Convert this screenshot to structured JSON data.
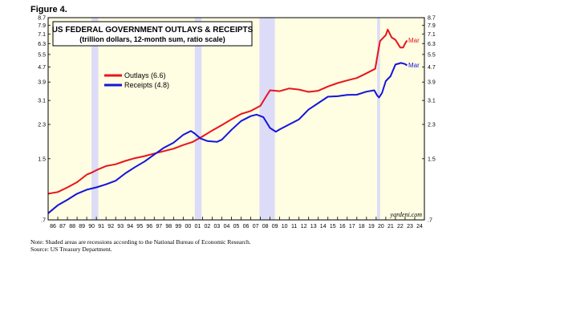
{
  "figure_label": "Figure 4.",
  "note": "Note: Shaded areas are recessions according to the National Bureau of Economic Research.",
  "source": "Source: US Treasury Department.",
  "colors": {
    "plot_bg": "#fffde2",
    "recession": "#dcdcf8",
    "outlays": "#e8141c",
    "receipts": "#1414dc"
  },
  "chart_data": {
    "type": "line",
    "title": "US FEDERAL GOVERNMENT OUTLAYS & RECEIPTS",
    "subtitle": "(trillion dollars, 12-month sum, ratio scale)",
    "y_scale": "log",
    "ylim": [
      0.7,
      8.7
    ],
    "y_ticks": [
      0.7,
      1.5,
      2.3,
      3.1,
      3.9,
      4.7,
      5.5,
      6.3,
      7.1,
      7.9,
      8.7
    ],
    "y_tick_labels": [
      ".7",
      "1.5",
      "2.3",
      "3.1",
      "3.9",
      "4.7",
      "5.5",
      "6.3",
      "7.1",
      "7.9",
      "8.7"
    ],
    "xlim": [
      1986,
      2025
    ],
    "x_tick_labels": [
      "86",
      "87",
      "88",
      "89",
      "90",
      "91",
      "92",
      "93",
      "94",
      "95",
      "96",
      "97",
      "98",
      "99",
      "00",
      "01",
      "02",
      "03",
      "04",
      "05",
      "06",
      "07",
      "08",
      "09",
      "10",
      "11",
      "12",
      "13",
      "14",
      "15",
      "16",
      "17",
      "18",
      "19",
      "20",
      "21",
      "22",
      "23",
      "24"
    ],
    "recessions": [
      [
        1990.5,
        1991.2
      ],
      [
        2001.2,
        2001.9
      ],
      [
        2007.9,
        2009.5
      ],
      [
        2020.1,
        2020.4
      ]
    ],
    "legend": [
      {
        "label": "Outlays (6.6)",
        "series": 0
      },
      {
        "label": "Receipts (4.8)",
        "series": 1
      }
    ],
    "legend_position": "upper-left",
    "end_label": "Mar",
    "credit": "yardeni.com",
    "series": [
      {
        "name": "Outlays",
        "points": [
          [
            1986.0,
            0.97
          ],
          [
            1987.0,
            0.99
          ],
          [
            1988.0,
            1.05
          ],
          [
            1989.0,
            1.12
          ],
          [
            1990.0,
            1.23
          ],
          [
            1990.5,
            1.26
          ],
          [
            1991.0,
            1.3
          ],
          [
            1992.0,
            1.37
          ],
          [
            1993.0,
            1.4
          ],
          [
            1994.0,
            1.46
          ],
          [
            1995.0,
            1.51
          ],
          [
            1996.0,
            1.55
          ],
          [
            1997.0,
            1.6
          ],
          [
            1998.0,
            1.65
          ],
          [
            1999.0,
            1.7
          ],
          [
            2000.0,
            1.78
          ],
          [
            2001.0,
            1.85
          ],
          [
            2002.0,
            1.98
          ],
          [
            2003.0,
            2.13
          ],
          [
            2004.0,
            2.28
          ],
          [
            2005.0,
            2.45
          ],
          [
            2006.0,
            2.62
          ],
          [
            2007.0,
            2.72
          ],
          [
            2008.0,
            2.9
          ],
          [
            2008.5,
            3.2
          ],
          [
            2009.0,
            3.52
          ],
          [
            2010.0,
            3.48
          ],
          [
            2011.0,
            3.6
          ],
          [
            2012.0,
            3.55
          ],
          [
            2013.0,
            3.45
          ],
          [
            2014.0,
            3.5
          ],
          [
            2015.0,
            3.69
          ],
          [
            2016.0,
            3.85
          ],
          [
            2017.0,
            3.98
          ],
          [
            2018.0,
            4.1
          ],
          [
            2019.0,
            4.35
          ],
          [
            2019.9,
            4.6
          ],
          [
            2020.1,
            5.3
          ],
          [
            2020.4,
            6.5
          ],
          [
            2021.0,
            7.0
          ],
          [
            2021.2,
            7.5
          ],
          [
            2021.6,
            6.8
          ],
          [
            2022.0,
            6.6
          ],
          [
            2022.5,
            6.0
          ],
          [
            2022.8,
            6.0
          ],
          [
            2023.0,
            6.3
          ],
          [
            2023.2,
            6.55
          ]
        ]
      },
      {
        "name": "Receipts",
        "points": [
          [
            1986.0,
            0.76
          ],
          [
            1987.0,
            0.84
          ],
          [
            1988.0,
            0.9
          ],
          [
            1989.0,
            0.97
          ],
          [
            1990.0,
            1.02
          ],
          [
            1991.0,
            1.05
          ],
          [
            1992.0,
            1.09
          ],
          [
            1993.0,
            1.14
          ],
          [
            1994.0,
            1.25
          ],
          [
            1995.0,
            1.35
          ],
          [
            1996.0,
            1.45
          ],
          [
            1997.0,
            1.58
          ],
          [
            1998.0,
            1.72
          ],
          [
            1999.0,
            1.83
          ],
          [
            2000.0,
            2.02
          ],
          [
            2000.8,
            2.12
          ],
          [
            2001.2,
            2.05
          ],
          [
            2001.8,
            1.93
          ],
          [
            2002.5,
            1.87
          ],
          [
            2003.5,
            1.85
          ],
          [
            2004.0,
            1.9
          ],
          [
            2005.0,
            2.15
          ],
          [
            2006.0,
            2.4
          ],
          [
            2007.0,
            2.55
          ],
          [
            2007.6,
            2.6
          ],
          [
            2008.3,
            2.52
          ],
          [
            2009.0,
            2.2
          ],
          [
            2009.6,
            2.1
          ],
          [
            2010.0,
            2.16
          ],
          [
            2011.0,
            2.3
          ],
          [
            2012.0,
            2.45
          ],
          [
            2013.0,
            2.77
          ],
          [
            2014.0,
            3.0
          ],
          [
            2015.0,
            3.25
          ],
          [
            2016.0,
            3.27
          ],
          [
            2017.0,
            3.32
          ],
          [
            2018.0,
            3.33
          ],
          [
            2019.0,
            3.46
          ],
          [
            2019.8,
            3.52
          ],
          [
            2020.1,
            3.3
          ],
          [
            2020.3,
            3.22
          ],
          [
            2020.6,
            3.4
          ],
          [
            2021.0,
            3.95
          ],
          [
            2021.5,
            4.2
          ],
          [
            2022.0,
            4.85
          ],
          [
            2022.6,
            4.95
          ],
          [
            2023.0,
            4.88
          ],
          [
            2023.2,
            4.8
          ]
        ]
      }
    ]
  }
}
